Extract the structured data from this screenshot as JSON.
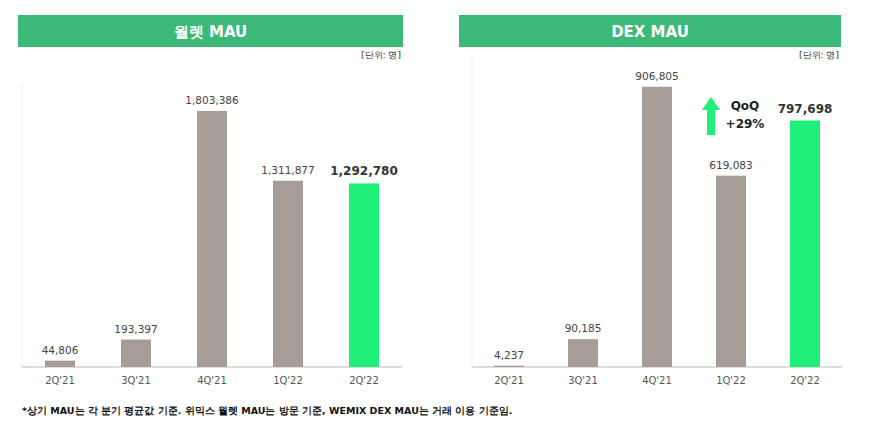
{
  "chart_data": [
    {
      "type": "bar",
      "title": "월렛 MAU",
      "subtitle": "[단위: 명]",
      "categories": [
        "2Q'21",
        "3Q'21",
        "4Q'21",
        "1Q'22",
        "2Q'22"
      ],
      "values": [
        44806,
        193397,
        1803386,
        1311877,
        1292780
      ],
      "value_labels": [
        "44,806",
        "193,397",
        "1,803,386",
        "1,311,877",
        "1,292,780"
      ],
      "colors": [
        "#a59d96",
        "#a59d96",
        "#a59d96",
        "#a59d96",
        "#1ef07a"
      ],
      "ylim": [
        0,
        2000000
      ],
      "data_labels": true,
      "tick_labels": "x",
      "grid": false
    },
    {
      "type": "bar",
      "title": "DEX MAU",
      "subtitle": "[단위: 명]",
      "categories": [
        "2Q'21",
        "3Q'21",
        "4Q'21",
        "1Q'22",
        "2Q'22"
      ],
      "values": [
        4237,
        90185,
        906805,
        619083,
        797698
      ],
      "value_labels": [
        "4,237",
        "90,185",
        "906,805",
        "619,083",
        "797,698"
      ],
      "colors": [
        "#a59d96",
        "#a59d96",
        "#a59d96",
        "#a59d96",
        "#1ef07a"
      ],
      "ylim": [
        0,
        1000000
      ],
      "data_labels": true,
      "tick_labels": "x",
      "grid": false,
      "annotations": [
        "QoQ",
        "+29%"
      ]
    }
  ],
  "footnote": "*상기 MAU는 각 분기 평균값 기준. 위믹스 월렛 MAU는 방문 기준, WEMIX DEX MAU는 거래 이용 기준임."
}
